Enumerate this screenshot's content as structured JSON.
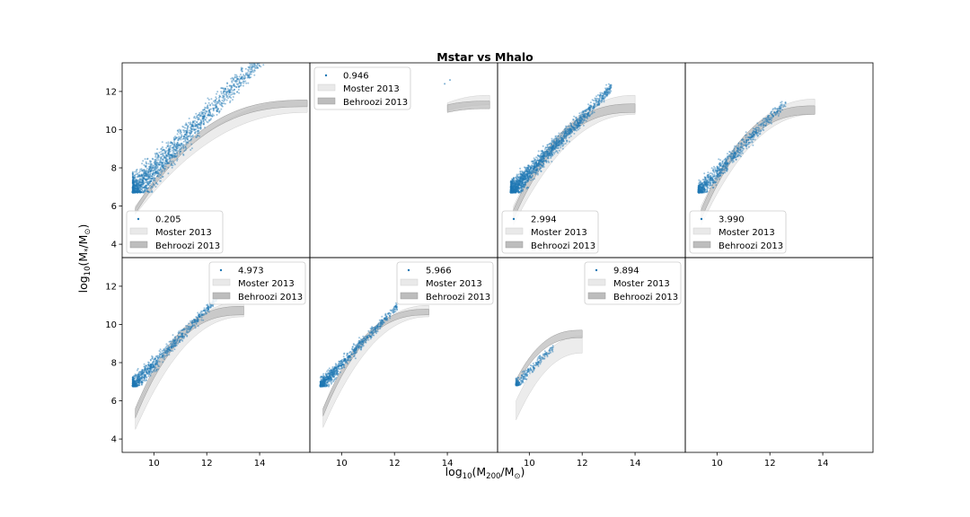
{
  "chart_data": {
    "type": "scatter",
    "title": "Mstar vs Mhalo",
    "xlabel": "log10(M200/M⊙)",
    "ylabel": "log10(M*/M⊙)",
    "xlim": [
      8.8,
      15.9
    ],
    "ylim": [
      3.3,
      13.5
    ],
    "xticks": [
      10,
      12,
      14
    ],
    "yticks": [
      4,
      6,
      8,
      10,
      12
    ],
    "grid": false,
    "layout": "2 rows x 4 columns, shared axes",
    "legend_entries": [
      "Moster 2013",
      "Behroozi 2013"
    ],
    "colors": {
      "points": "#1f77b4",
      "moster_band": "#e9e9e9",
      "behroozi_band": "#bdbdbd"
    },
    "panels": [
      {
        "redshift_label": "0.205",
        "legend_position": "lower left",
        "points": {
          "x_range": [
            9.2,
            14.6
          ],
          "floor": 6.7,
          "spread": 0.85,
          "density": "high"
        },
        "moster": {
          "x": [
            9.3,
            15.8
          ],
          "lo": [
            5.55,
            10.9
          ],
          "hi": [
            6.0,
            11.55
          ]
        },
        "behroozi": {
          "x": [
            9.3,
            15.8
          ],
          "lo": [
            5.6,
            11.2
          ],
          "hi": [
            5.9,
            11.55
          ]
        }
      },
      {
        "redshift_label": "0.946",
        "legend_position": "upper left",
        "points": {
          "x": [
            13.9,
            14.1
          ],
          "y": [
            12.4,
            12.6
          ]
        },
        "moster": {
          "x": [
            14.0,
            15.6
          ],
          "lo": [
            11.0,
            11.3
          ],
          "hi": [
            11.4,
            11.8
          ]
        },
        "behroozi": {
          "x": [
            14.0,
            15.6
          ],
          "lo": [
            10.9,
            11.1
          ],
          "hi": [
            11.3,
            11.5
          ]
        }
      },
      {
        "redshift_label": "2.994",
        "legend_position": "lower left",
        "points": {
          "x_range": [
            9.3,
            13.1
          ],
          "floor": 6.7,
          "spread": 0.55,
          "density": "high"
        },
        "moster": {
          "x": [
            9.4,
            14.0
          ],
          "lo": [
            5.0,
            10.8
          ],
          "hi": [
            6.0,
            11.8
          ]
        },
        "behroozi": {
          "x": [
            9.4,
            14.0
          ],
          "lo": [
            5.3,
            10.9
          ],
          "hi": [
            5.8,
            11.35
          ]
        }
      },
      {
        "redshift_label": "3.990",
        "legend_position": "lower left",
        "points": {
          "x_range": [
            9.3,
            12.6
          ],
          "floor": 6.7,
          "spread": 0.5,
          "density": "medium"
        },
        "moster": {
          "x": [
            9.4,
            13.7
          ],
          "lo": [
            5.0,
            10.8
          ],
          "hi": [
            6.0,
            11.6
          ]
        },
        "behroozi": {
          "x": [
            9.4,
            13.7
          ],
          "lo": [
            5.3,
            10.8
          ],
          "hi": [
            5.8,
            11.25
          ]
        }
      },
      {
        "redshift_label": "4.973",
        "legend_position": "upper right",
        "points": {
          "x_range": [
            9.2,
            12.4
          ],
          "floor": 6.75,
          "spread": 0.45,
          "density": "medium"
        },
        "moster": {
          "x": [
            9.3,
            13.4
          ],
          "lo": [
            4.5,
            10.4
          ],
          "hi": [
            5.5,
            11.2
          ]
        },
        "behroozi": {
          "x": [
            9.3,
            13.4
          ],
          "lo": [
            5.1,
            10.5
          ],
          "hi": [
            5.6,
            10.95
          ]
        }
      },
      {
        "redshift_label": "5.966",
        "legend_position": "upper right",
        "points": {
          "x_range": [
            9.2,
            12.1
          ],
          "floor": 6.75,
          "spread": 0.4,
          "density": "medium"
        },
        "moster": {
          "x": [
            9.3,
            13.3
          ],
          "lo": [
            4.6,
            10.4
          ],
          "hi": [
            5.6,
            11.0
          ]
        },
        "behroozi": {
          "x": [
            9.3,
            13.3
          ],
          "lo": [
            5.2,
            10.5
          ],
          "hi": [
            5.6,
            10.8
          ]
        }
      },
      {
        "redshift_label": "9.894",
        "legend_position": "upper right",
        "points": {
          "x_range": [
            9.5,
            10.9
          ],
          "floor": 6.8,
          "spread": 0.35,
          "density": "low"
        },
        "moster": {
          "x": [
            9.5,
            12.0
          ],
          "lo": [
            5.0,
            8.5
          ],
          "hi": [
            6.0,
            9.4
          ]
        },
        "behroozi": {
          "x": [
            9.5,
            12.0
          ],
          "lo": [
            6.8,
            9.3
          ],
          "hi": [
            7.1,
            9.7
          ]
        }
      },
      {
        "redshift_label": "",
        "legend_position": "",
        "points": null,
        "moster": null,
        "behroozi": null
      }
    ]
  }
}
